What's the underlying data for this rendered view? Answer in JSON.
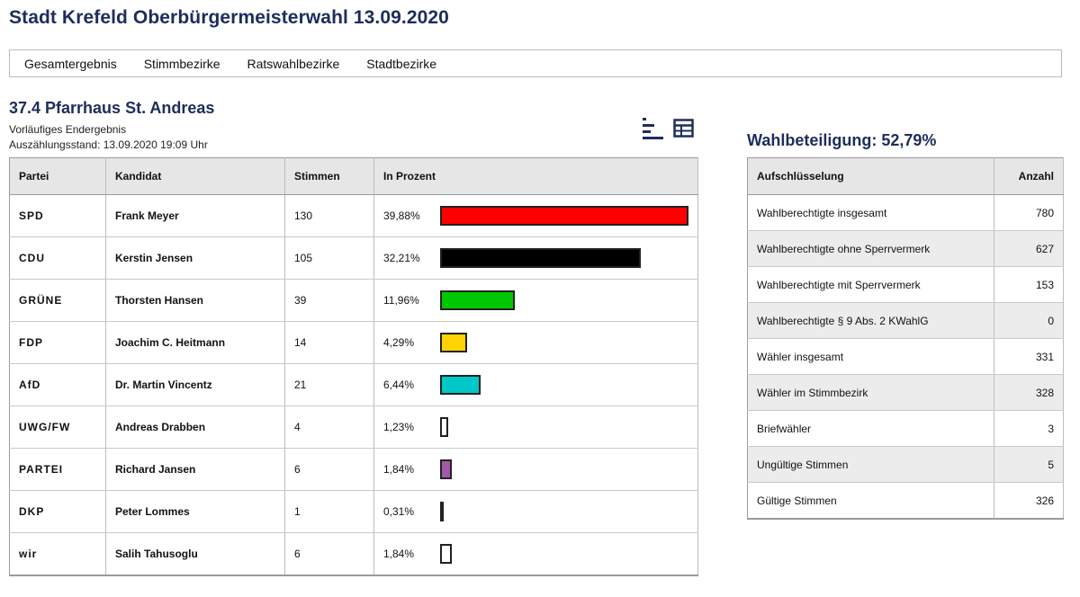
{
  "page": {
    "title": "Stadt Krefeld Oberbürgermeisterwahl 13.09.2020"
  },
  "nav": {
    "items": [
      "Gesamtergebnis",
      "Stimmbezirke",
      "Ratswahlbezirke",
      "Stadtbezirke"
    ]
  },
  "district": {
    "title": "37.4 Pfarrhaus St. Andreas",
    "status": "Vorläufiges Endergebnis",
    "count_time": "Auszählungsstand: 13.09.2020 19:09 Uhr"
  },
  "view_icons": [
    "bar-chart-view-icon",
    "table-view-icon"
  ],
  "results": {
    "headers": {
      "party": "Partei",
      "candidate": "Kandidat",
      "votes": "Stimmen",
      "percent": "In Prozent"
    },
    "rows": [
      {
        "party": "SPD",
        "candidate": "Frank Meyer",
        "votes": "130",
        "percent": "39,88%",
        "color": "#ff0000"
      },
      {
        "party": "CDU",
        "candidate": "Kerstin Jensen",
        "votes": "105",
        "percent": "32,21%",
        "color": "#000000"
      },
      {
        "party": "GRÜNE",
        "candidate": "Thorsten Hansen",
        "votes": "39",
        "percent": "11,96%",
        "color": "#00c800"
      },
      {
        "party": "FDP",
        "candidate": "Joachim C. Heitmann",
        "votes": "14",
        "percent": "4,29%",
        "color": "#ffd300"
      },
      {
        "party": "AfD",
        "candidate": "Dr. Martin Vincentz",
        "votes": "21",
        "percent": "6,44%",
        "color": "#00c8c8"
      },
      {
        "party": "UWG/FW",
        "candidate": "Andreas Drabben",
        "votes": "4",
        "percent": "1,23%",
        "color": "#ffffff"
      },
      {
        "party": "PARTEI",
        "candidate": "Richard Jansen",
        "votes": "6",
        "percent": "1,84%",
        "color": "#a35aa8"
      },
      {
        "party": "DKP",
        "candidate": "Peter Lommes",
        "votes": "1",
        "percent": "0,31%",
        "color": "#000000"
      },
      {
        "party": "wir",
        "candidate": "Salih Tahusoglu",
        "votes": "6",
        "percent": "1,84%",
        "color": "#ffffff"
      }
    ]
  },
  "turnout": {
    "title": "Wahlbeteiligung: 52,79%",
    "headers": {
      "label": "Aufschlüsselung",
      "count": "Anzahl"
    },
    "rows": [
      {
        "label": "Wahlberechtigte insgesamt",
        "count": "780"
      },
      {
        "label": "Wahlberechtigte ohne Sperrvermerk",
        "count": "627"
      },
      {
        "label": "Wahlberechtigte mit Sperrvermerk",
        "count": "153"
      },
      {
        "label": "Wahlberechtigte § 9 Abs. 2 KWahlG",
        "count": "0"
      },
      {
        "label": "Wähler insgesamt",
        "count": "331"
      },
      {
        "label": "Wähler im Stimmbezirk",
        "count": "328"
      },
      {
        "label": "Briefwähler",
        "count": "3"
      },
      {
        "label": "Ungültige Stimmen",
        "count": "5"
      },
      {
        "label": "Gültige Stimmen",
        "count": "326"
      }
    ]
  }
}
